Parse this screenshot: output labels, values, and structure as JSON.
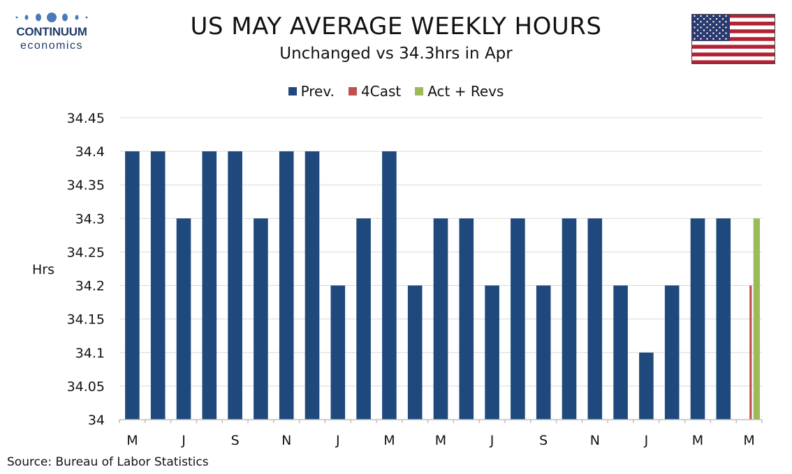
{
  "logo": {
    "line1": "CONTINUUM",
    "line2": "economics",
    "color": "#1f3a6b"
  },
  "title": "US MAY AVERAGE WEEKLY HOURS",
  "subtitle": "Unchanged vs 34.3hrs in Apr",
  "flag": {
    "name": "us-flag-icon"
  },
  "source": "Source: Bureau of Labor Statistics",
  "chart_data": {
    "type": "bar",
    "ylabel": "Hrs",
    "xlabel": "",
    "ylim": [
      34,
      34.45
    ],
    "yticks": [
      "34",
      "34.05",
      "34.1",
      "34.15",
      "34.2",
      "34.25",
      "34.3",
      "34.35",
      "34.4",
      "34.45"
    ],
    "grid": true,
    "legend_position": "top",
    "series": [
      {
        "name": "Prev.",
        "color": "#1f497d",
        "values": [
          34.4,
          34.4,
          34.3,
          34.4,
          34.4,
          34.3,
          34.4,
          34.4,
          34.2,
          34.3,
          34.4,
          34.2,
          34.3,
          34.3,
          34.2,
          34.3,
          34.2,
          34.3,
          34.3,
          34.2,
          34.1,
          34.2,
          34.3,
          34.3,
          null
        ]
      },
      {
        "name": "4Cast",
        "color": "#c0504d",
        "values": [
          null,
          null,
          null,
          null,
          null,
          null,
          null,
          null,
          null,
          null,
          null,
          null,
          null,
          null,
          null,
          null,
          null,
          null,
          null,
          null,
          null,
          null,
          null,
          null,
          34.2
        ]
      },
      {
        "name": "Act + Revs",
        "color": "#9bbb59",
        "values": [
          null,
          null,
          null,
          null,
          null,
          null,
          null,
          null,
          null,
          null,
          null,
          null,
          null,
          null,
          null,
          null,
          null,
          null,
          null,
          null,
          null,
          null,
          null,
          null,
          34.3
        ]
      }
    ],
    "x_tick_labels": [
      "M",
      "J",
      "S",
      "N",
      "J",
      "M",
      "M",
      "J",
      "S",
      "N",
      "J",
      "M",
      "M"
    ]
  }
}
